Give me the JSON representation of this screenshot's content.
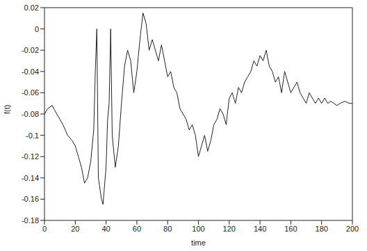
{
  "chart_data": {
    "type": "line",
    "x_label": "time",
    "y_label": "f(t)",
    "color": "#222222",
    "xlim": [
      0,
      200
    ],
    "xticks": [
      0,
      20,
      40,
      60,
      80,
      100,
      120,
      140,
      160,
      180,
      200
    ],
    "ylim": [
      -0.18,
      0.02
    ],
    "yticks": [
      -0.18,
      -0.16,
      -0.14,
      -0.12,
      -0.1,
      -0.08,
      -0.06,
      -0.04,
      -0.02,
      0,
      0.02
    ],
    "grid": false,
    "x": [
      0,
      2,
      5,
      8,
      10,
      12,
      15,
      18,
      20,
      22,
      24,
      26,
      28,
      30,
      32,
      33,
      34,
      35,
      37,
      38,
      40,
      41,
      42,
      43,
      44,
      46,
      48,
      50,
      52,
      54,
      56,
      58,
      60,
      62,
      64,
      66,
      68,
      70,
      72,
      74,
      76,
      78,
      80,
      82,
      84,
      86,
      88,
      90,
      92,
      94,
      96,
      98,
      100,
      102,
      104,
      106,
      108,
      110,
      112,
      114,
      116,
      118,
      120,
      122,
      124,
      126,
      128,
      130,
      132,
      134,
      136,
      138,
      140,
      142,
      144,
      146,
      148,
      150,
      152,
      154,
      156,
      158,
      160,
      162,
      164,
      166,
      168,
      170,
      172,
      174,
      176,
      178,
      180,
      182,
      184,
      186,
      188,
      190,
      192,
      195,
      198,
      200
    ],
    "values": [
      -0.08,
      -0.075,
      -0.072,
      -0.08,
      -0.085,
      -0.09,
      -0.1,
      -0.105,
      -0.11,
      -0.12,
      -0.13,
      -0.145,
      -0.14,
      -0.125,
      -0.095,
      -0.04,
      0.0,
      -0.14,
      -0.16,
      -0.165,
      -0.13,
      -0.085,
      -0.07,
      0.0,
      -0.1,
      -0.13,
      -0.11,
      -0.07,
      -0.035,
      -0.02,
      -0.03,
      -0.06,
      -0.04,
      -0.01,
      0.015,
      0.005,
      -0.02,
      -0.01,
      -0.02,
      -0.03,
      -0.015,
      -0.03,
      -0.045,
      -0.04,
      -0.055,
      -0.06,
      -0.075,
      -0.08,
      -0.085,
      -0.095,
      -0.09,
      -0.1,
      -0.12,
      -0.11,
      -0.1,
      -0.115,
      -0.105,
      -0.09,
      -0.085,
      -0.075,
      -0.08,
      -0.09,
      -0.065,
      -0.06,
      -0.07,
      -0.055,
      -0.06,
      -0.05,
      -0.045,
      -0.04,
      -0.03,
      -0.035,
      -0.025,
      -0.03,
      -0.02,
      -0.035,
      -0.04,
      -0.05,
      -0.045,
      -0.06,
      -0.04,
      -0.05,
      -0.06,
      -0.055,
      -0.05,
      -0.06,
      -0.065,
      -0.07,
      -0.06,
      -0.065,
      -0.07,
      -0.065,
      -0.07,
      -0.065,
      -0.07,
      -0.068,
      -0.07,
      -0.072,
      -0.07,
      -0.068,
      -0.07,
      -0.07
    ]
  }
}
